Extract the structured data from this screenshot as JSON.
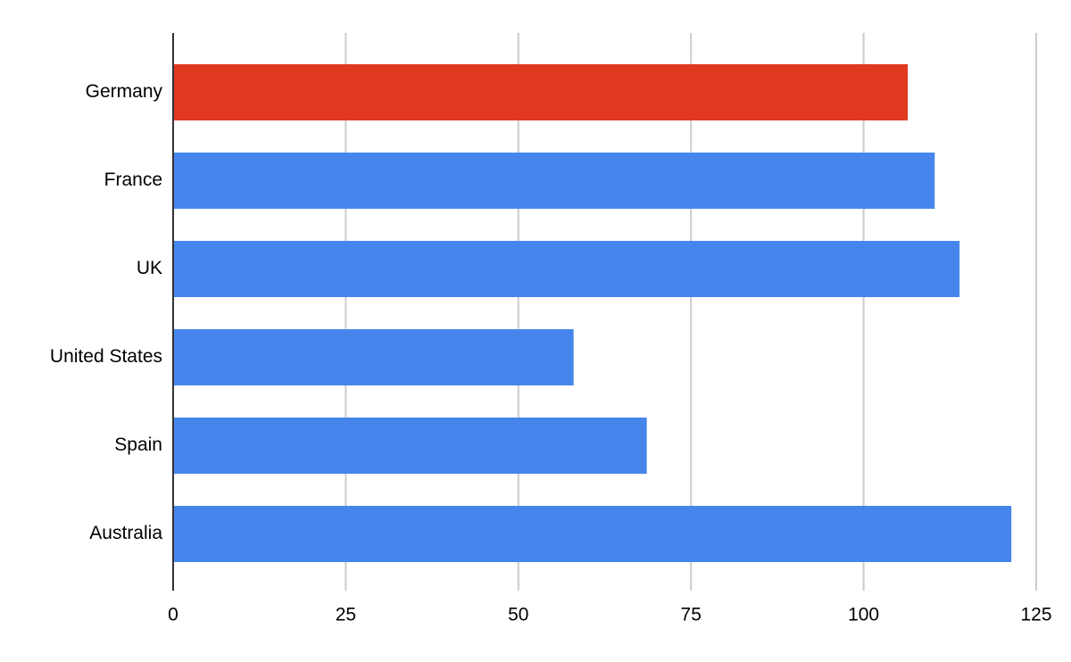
{
  "chart_data": {
    "type": "hbar",
    "categories": [
      "Germany",
      "France",
      "UK",
      "United States",
      "Spain",
      "Australia"
    ],
    "values": [
      106.4,
      110.3,
      113.9,
      58.0,
      68.6,
      121.4
    ],
    "colors": [
      "#e0391f",
      "#4686ec",
      "#4686ec",
      "#4686ec",
      "#4686ec",
      "#4686ec"
    ],
    "xlim": [
      0,
      125
    ],
    "xticks": [
      0,
      25,
      50,
      75,
      100,
      125
    ],
    "grid": true
  }
}
